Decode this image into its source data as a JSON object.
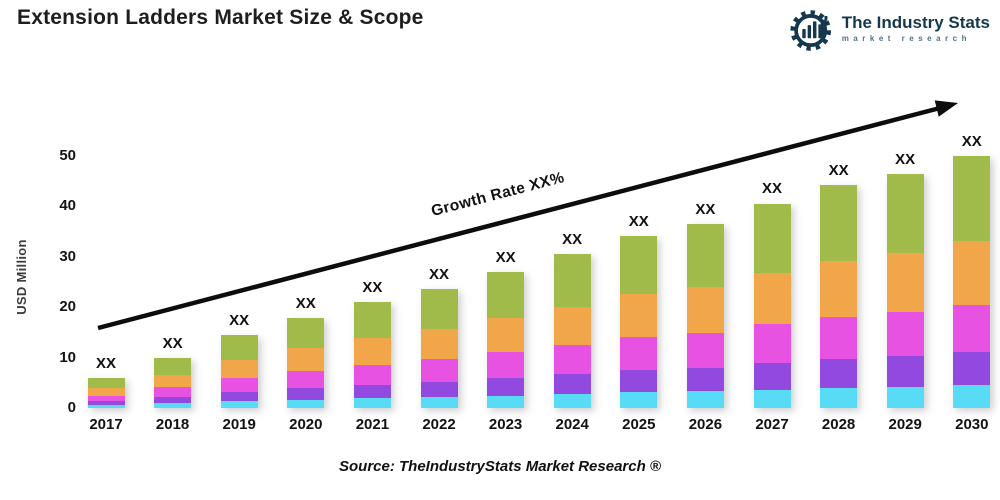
{
  "title": "Extension Ladders Market Size & Scope",
  "logo": {
    "name": "The Industry Stats",
    "tagline": "market research",
    "color": "#16384f",
    "tagline_color": "#4f7383",
    "icon": "gear-bars-wrench-icon"
  },
  "source": "Source: TheIndustryStats Market Research ®",
  "chart_data": {
    "type": "bar",
    "stacked": true,
    "ylabel": "USD Million",
    "ylim": [
      0,
      50
    ],
    "yticks": [
      0,
      10,
      20,
      30,
      40,
      50
    ],
    "grid": false,
    "legend": false,
    "annotation": "Growth Rate XX%",
    "bar_value_label": "XX",
    "categories": [
      "2017",
      "2018",
      "2019",
      "2020",
      "2021",
      "2022",
      "2023",
      "2024",
      "2025",
      "2026",
      "2027",
      "2028",
      "2029",
      "2030"
    ],
    "series": [
      {
        "name": "segment-lightblue",
        "color": "#58dbf5",
        "values": [
          0.5,
          0.9,
          1.3,
          1.6,
          1.9,
          2.1,
          2.4,
          2.7,
          3.1,
          3.3,
          3.6,
          4.0,
          4.2,
          4.5
        ]
      },
      {
        "name": "segment-purple",
        "color": "#9249e0",
        "values": [
          0.8,
          1.3,
          1.9,
          2.3,
          2.7,
          3.1,
          3.5,
          4.0,
          4.4,
          4.7,
          5.3,
          5.7,
          6.0,
          6.5
        ]
      },
      {
        "name": "segment-magenta",
        "color": "#e852e3",
        "values": [
          1.1,
          1.9,
          2.8,
          3.4,
          4.0,
          4.5,
          5.1,
          5.8,
          6.5,
          6.9,
          7.7,
          8.4,
          8.8,
          9.5
        ]
      },
      {
        "name": "segment-orange",
        "color": "#f2a64a",
        "values": [
          1.5,
          2.5,
          3.6,
          4.5,
          5.3,
          5.9,
          6.8,
          7.6,
          8.5,
          9.1,
          10.1,
          11.0,
          11.6,
          12.5
        ]
      },
      {
        "name": "segment-green",
        "color": "#a0bb49",
        "values": [
          2.0,
          3.4,
          4.9,
          6.1,
          7.1,
          8.0,
          9.2,
          10.4,
          11.6,
          12.4,
          13.8,
          15.0,
          15.8,
          17.0
        ]
      }
    ],
    "totals": [
      5.9,
      10.0,
      14.5,
      17.9,
      21.0,
      23.6,
      27.0,
      30.5,
      34.1,
      36.4,
      40.5,
      44.1,
      46.4,
      50.0
    ]
  }
}
